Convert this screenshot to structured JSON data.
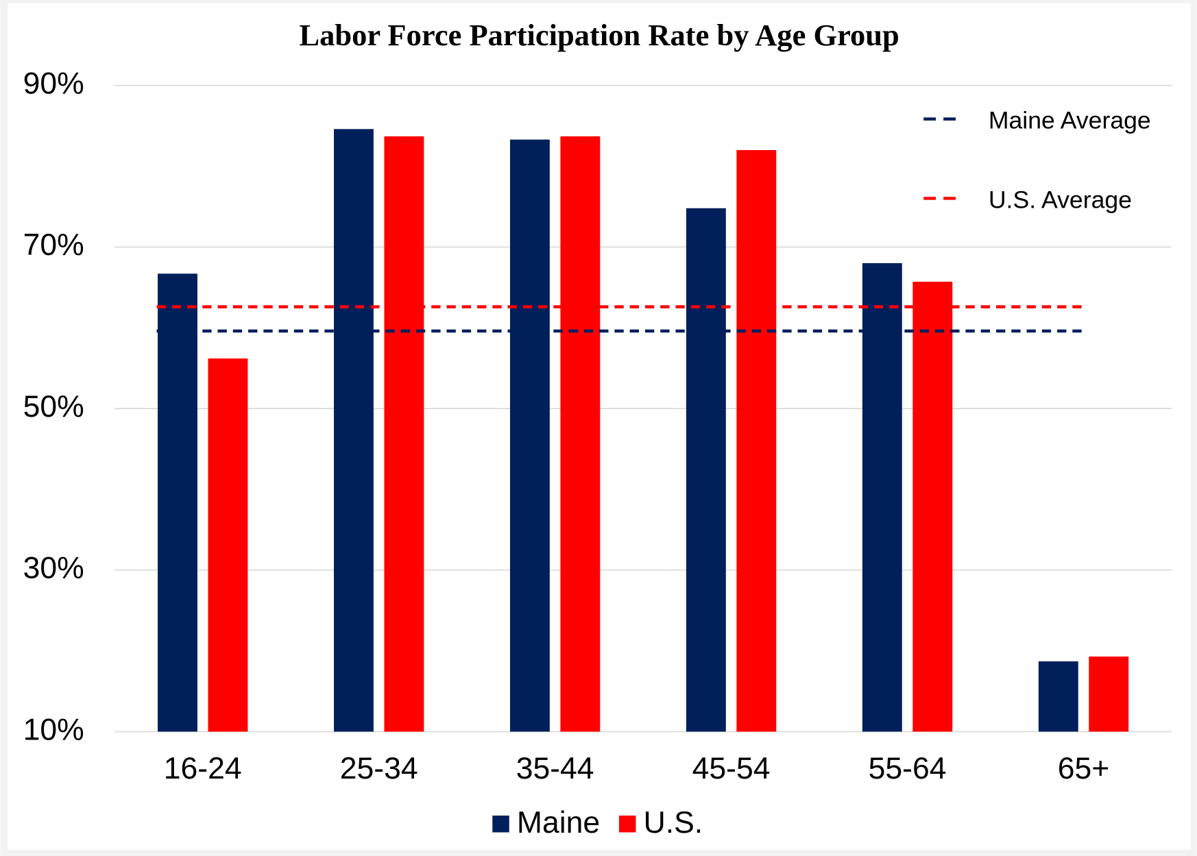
{
  "chart_data": {
    "type": "bar",
    "title": "Labor Force Participation Rate by Age Group",
    "categories": [
      "16-24",
      "25-34",
      "35-44",
      "45-54",
      "55-64",
      "65+"
    ],
    "series": [
      {
        "name": "Maine",
        "color": "#001f5b",
        "values": [
          66.7,
          84.6,
          83.3,
          74.8,
          68.0,
          18.7
        ]
      },
      {
        "name": "U.S.",
        "color": "#ff0000",
        "values": [
          56.2,
          83.7,
          83.7,
          82.0,
          65.7,
          19.3
        ]
      }
    ],
    "reference_lines": [
      {
        "name": "Maine Average",
        "color": "#001f5b",
        "value": 59.6
      },
      {
        "name": "U.S. Average",
        "color": "#ff0000",
        "value": 62.6
      }
    ],
    "ylim": [
      10,
      90
    ],
    "yticks": [
      {
        "value": 10,
        "label": "10%"
      },
      {
        "value": 30,
        "label": "30%"
      },
      {
        "value": 50,
        "label": "50%"
      },
      {
        "value": 70,
        "label": "70%"
      },
      {
        "value": 90,
        "label": "90%"
      }
    ],
    "grid": true,
    "legend": "bottom"
  }
}
